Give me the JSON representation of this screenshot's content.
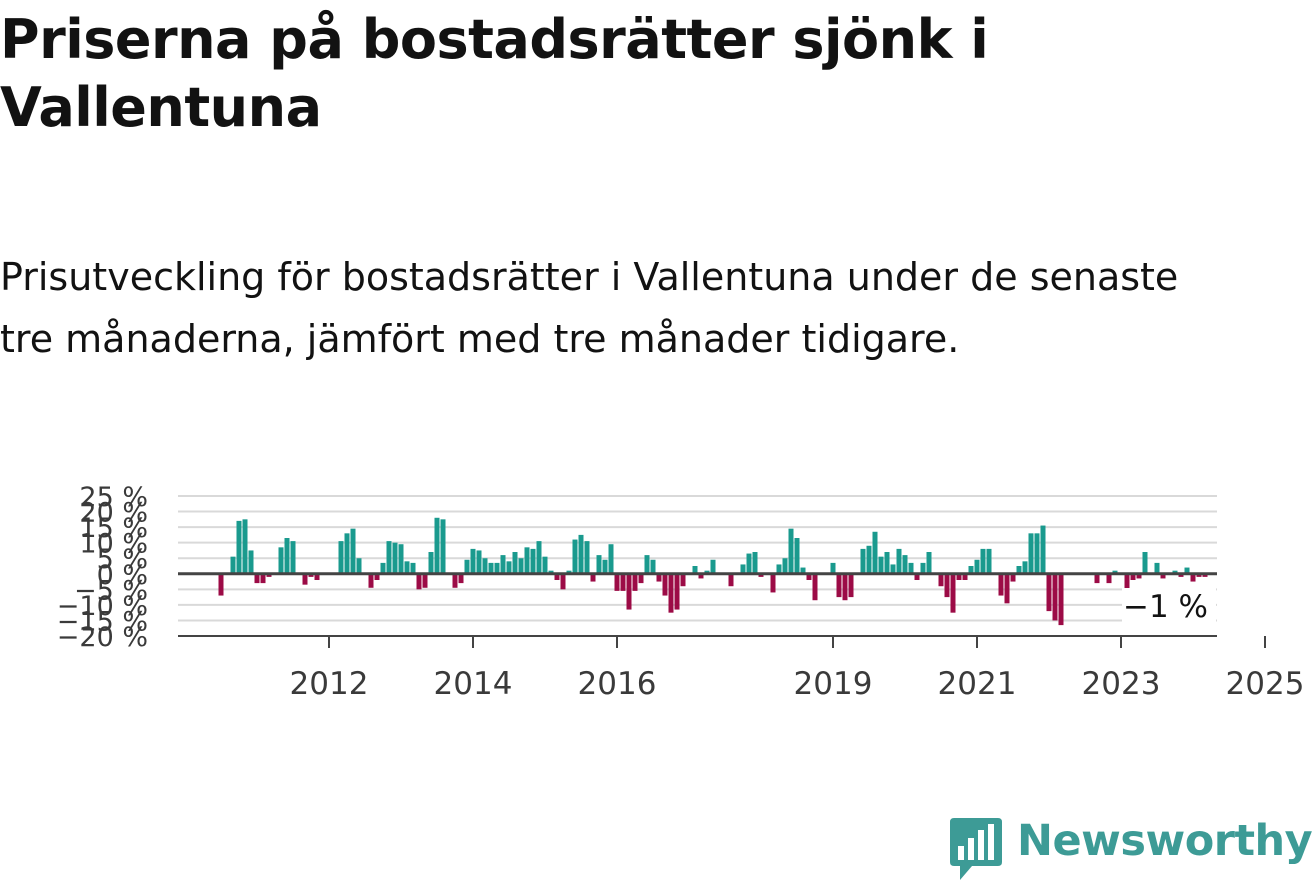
{
  "title": "Priserna på bostadsrätter sjönk i Vallentuna",
  "subtitle": "Prisutveckling för bostadsrätter i Vallentuna under de senaste tre månaderna, jämfört med tre månader tidigare.",
  "brand": {
    "name": "Newsworthy"
  },
  "colors": {
    "positive": "#1a9a8e",
    "negative": "#9c0b46",
    "grid": "#d9d9d9",
    "zero_line": "#444444"
  },
  "chart_data": {
    "type": "bar",
    "y_tick_labels": [
      "25 %",
      "20 %",
      "15 %",
      "10 %",
      "5 %",
      "0 %",
      "−5 %",
      "−10 %",
      "−15 %",
      "−20 %"
    ],
    "x_tick_labels": [
      "2012",
      "2014",
      "2016",
      "2019",
      "2021",
      "2023",
      "2025"
    ],
    "last_value_label": "−1 %",
    "series": [
      {
        "values": [
          -7,
          0,
          5.5,
          17,
          17.5,
          7.5,
          -3,
          -3,
          -1,
          0,
          8.5,
          11.5,
          10.5,
          0,
          -3.5,
          -1,
          -2,
          0,
          0,
          0,
          10.5,
          13,
          14.5,
          5,
          0,
          -4.5,
          -2,
          3.5,
          10.5,
          10,
          9.5,
          4,
          3.5,
          -5,
          -4.5,
          7,
          18,
          17.5,
          0,
          -4.5,
          -3,
          4.5,
          8,
          7.5,
          5,
          3.5,
          3.5,
          6,
          4,
          7,
          5,
          8.5,
          8,
          10.5,
          5.5,
          1,
          -2,
          -5,
          1,
          11,
          12.5,
          10.5,
          -2.5,
          6,
          4.5,
          9.5,
          -5.5,
          -5.5,
          -11.5,
          -5.5,
          -3,
          6,
          4.5,
          -2.5,
          -7,
          -12.5,
          -11.5,
          -4,
          0,
          2.5,
          -1.5,
          1,
          4.5,
          0,
          0,
          -4,
          0,
          3,
          6.5,
          7,
          -1,
          0,
          -6,
          3,
          5,
          14.5,
          11.5,
          2,
          -2,
          -8.5,
          0,
          0,
          3.5,
          -7.5,
          -8.5,
          -7.5,
          0,
          8,
          9,
          13.5,
          5.5,
          7,
          3,
          8,
          6,
          3.5,
          -2,
          3.5,
          7,
          0,
          -4,
          -7.5,
          -12.5,
          -2,
          -2,
          2.5,
          4.5,
          8,
          8,
          0,
          -7,
          -9.5,
          -2.5,
          2.5,
          4,
          13,
          13,
          15.5,
          -12,
          -15,
          -16.5,
          0,
          0,
          0,
          0,
          0,
          -3,
          0,
          -3,
          1,
          0,
          -5.5,
          -2,
          -1.5,
          7,
          0,
          3.5,
          -1.5,
          0,
          1,
          -1,
          2,
          -2.5,
          -1,
          -1
        ]
      }
    ],
    "ylim": [
      -20,
      25
    ],
    "grid": true
  }
}
